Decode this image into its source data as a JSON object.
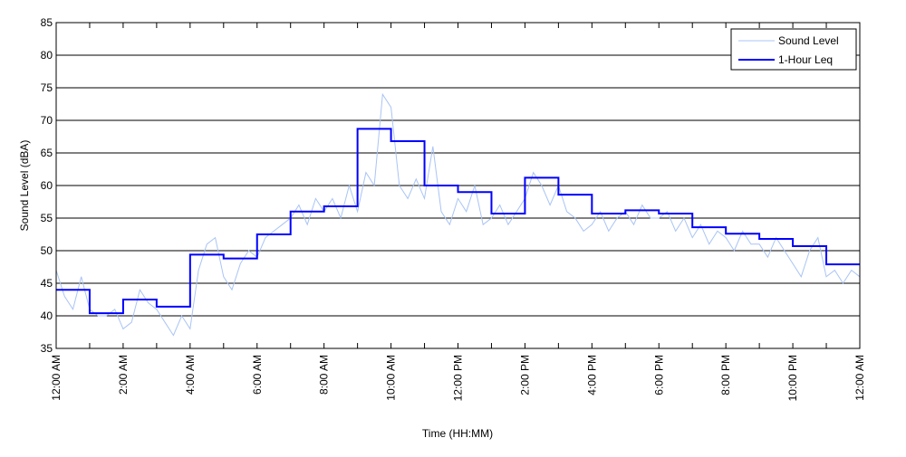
{
  "chart_data": {
    "type": "line",
    "title": "",
    "xlabel": "Time (HH:MM)",
    "ylabel": "Sound Level (dBA)",
    "ylim": [
      35,
      85
    ],
    "yticks": [
      35,
      40,
      45,
      50,
      55,
      60,
      65,
      70,
      75,
      80,
      85
    ],
    "xlim_hours": [
      0,
      24
    ],
    "xtick_hours": [
      0,
      2,
      4,
      6,
      8,
      10,
      12,
      14,
      16,
      18,
      20,
      22,
      24
    ],
    "xtick_labels": [
      "12:00 AM",
      "2:00 AM",
      "4:00 AM",
      "6:00 AM",
      "8:00 AM",
      "10:00 AM",
      "12:00 PM",
      "2:00 PM",
      "4:00 PM",
      "6:00 PM",
      "8:00 PM",
      "10:00 PM",
      "12:00 AM"
    ],
    "grid": "horizontal",
    "legend_position": "top-right",
    "series": [
      {
        "name": "Sound Level",
        "color": "#a9c4f5",
        "interval_minutes": 15,
        "values": [
          47,
          43,
          41,
          46,
          41,
          40,
          40,
          41,
          38,
          39,
          44,
          42,
          41,
          39,
          37,
          40,
          38,
          47,
          51,
          52,
          46,
          44,
          48,
          50,
          49,
          52,
          53,
          54,
          55,
          57,
          54,
          58,
          56,
          58,
          55,
          60,
          56,
          62,
          60,
          74,
          72,
          60,
          58,
          61,
          58,
          66,
          56,
          54,
          58,
          56,
          60,
          54,
          55,
          57,
          54,
          56,
          58,
          62,
          60,
          57,
          60,
          56,
          55,
          53,
          54,
          56,
          53,
          55,
          56,
          54,
          57,
          55,
          55,
          56,
          53,
          55,
          52,
          54,
          51,
          53,
          52,
          50,
          53,
          51,
          51,
          49,
          52,
          50,
          48,
          46,
          50,
          52,
          46,
          47,
          45,
          47,
          46
        ]
      },
      {
        "name": "1-Hour Leq",
        "color": "#0000ff",
        "step": "hourly",
        "values": [
          44.0,
          40.4,
          42.5,
          41.4,
          49.4,
          48.8,
          52.5,
          56.0,
          56.8,
          68.7,
          66.8,
          60.0,
          59.0,
          55.7,
          61.2,
          58.6,
          55.7,
          56.2,
          55.7,
          53.6,
          52.6,
          51.8,
          50.7,
          47.9
        ]
      }
    ]
  }
}
